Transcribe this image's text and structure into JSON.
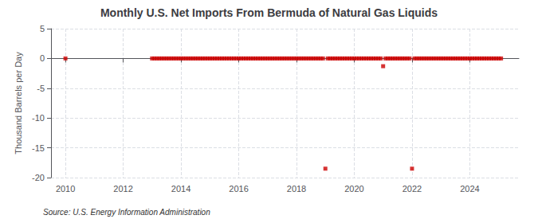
{
  "chart_data": {
    "type": "scatter",
    "title": "Monthly U.S. Net Imports From Bermuda of Natural Gas Liquids",
    "ylabel": "Thousand Barrels per Day",
    "annotations": [
      "Source: U.S. Energy Information Administration"
    ],
    "xlim": [
      2009.5,
      2025.7
    ],
    "ylim": [
      -20,
      5
    ],
    "xticks": [
      2010,
      2012,
      2014,
      2016,
      2018,
      2020,
      2022,
      2024
    ],
    "yticks": [
      5,
      0,
      -5,
      -10,
      -15,
      -20
    ],
    "grid": true,
    "color": "#cc0000",
    "marker": "square",
    "x": [
      2010,
      2013,
      2013.083,
      2013.167,
      2013.25,
      2013.333,
      2013.417,
      2013.5,
      2013.583,
      2013.667,
      2013.75,
      2013.833,
      2013.917,
      2014,
      2014.083,
      2014.167,
      2014.25,
      2014.333,
      2014.417,
      2014.5,
      2014.583,
      2014.667,
      2014.75,
      2014.833,
      2014.917,
      2015,
      2015.083,
      2015.167,
      2015.25,
      2015.333,
      2015.417,
      2015.5,
      2015.583,
      2015.667,
      2015.75,
      2015.833,
      2015.917,
      2016,
      2016.083,
      2016.167,
      2016.25,
      2016.333,
      2016.417,
      2016.5,
      2016.583,
      2016.667,
      2016.75,
      2016.833,
      2016.917,
      2017,
      2017.083,
      2017.167,
      2017.25,
      2017.333,
      2017.417,
      2017.5,
      2017.583,
      2017.667,
      2017.75,
      2017.833,
      2017.917,
      2018,
      2018.083,
      2018.167,
      2018.25,
      2018.333,
      2018.417,
      2018.5,
      2018.583,
      2018.667,
      2018.75,
      2018.833,
      2018.917,
      2019,
      2019.083,
      2019.167,
      2019.25,
      2019.333,
      2019.417,
      2019.5,
      2019.583,
      2019.667,
      2019.75,
      2019.833,
      2019.917,
      2020,
      2020.083,
      2020.167,
      2020.25,
      2020.333,
      2020.417,
      2020.5,
      2020.583,
      2020.667,
      2020.75,
      2020.833,
      2020.917,
      2021,
      2021.083,
      2021.167,
      2021.25,
      2021.333,
      2021.417,
      2021.5,
      2021.583,
      2021.667,
      2021.75,
      2021.833,
      2021.917,
      2022,
      2022.083,
      2022.167,
      2022.25,
      2022.333,
      2022.417,
      2022.5,
      2022.583,
      2022.667,
      2022.75,
      2022.833,
      2022.917,
      2023,
      2023.083,
      2023.167,
      2023.25,
      2023.333,
      2023.417,
      2023.5,
      2023.583,
      2023.667,
      2023.75,
      2023.833,
      2023.917,
      2024,
      2024.083,
      2024.167,
      2024.25,
      2024.333,
      2024.417,
      2024.5,
      2024.583,
      2024.667,
      2024.75,
      2024.833,
      2024.917,
      2025,
      2025.083
    ],
    "values": [
      0,
      0,
      0,
      0,
      0,
      0,
      0,
      0,
      0,
      0,
      0,
      0,
      0,
      0,
      0,
      0,
      0,
      0,
      0,
      0,
      0,
      0,
      0,
      0,
      0,
      0,
      0,
      0,
      0,
      0,
      0,
      0,
      0,
      0,
      0,
      0,
      0,
      0,
      0,
      0,
      0,
      0,
      0,
      0,
      0,
      0,
      0,
      0,
      0,
      0,
      0,
      0,
      0,
      0,
      0,
      0,
      0,
      0,
      0,
      0,
      0,
      0,
      0,
      0,
      0,
      0,
      0,
      0,
      0,
      0,
      0,
      0,
      0,
      -18.5,
      0,
      0,
      0,
      0,
      0,
      0,
      0,
      0,
      0,
      0,
      0,
      0,
      0,
      0,
      0,
      0,
      0,
      0,
      0,
      0,
      0,
      0,
      0,
      -1.3,
      0,
      0,
      0,
      0,
      0,
      0,
      0,
      0,
      0,
      0,
      0,
      -18.5,
      0,
      0,
      0,
      0,
      0,
      0,
      0,
      0,
      0,
      0,
      0,
      0,
      0,
      0,
      0,
      0,
      0,
      0,
      0,
      0,
      0,
      0,
      0,
      0,
      0,
      0,
      0,
      0,
      0,
      0,
      0,
      0,
      0,
      0,
      0,
      0,
      0
    ]
  }
}
